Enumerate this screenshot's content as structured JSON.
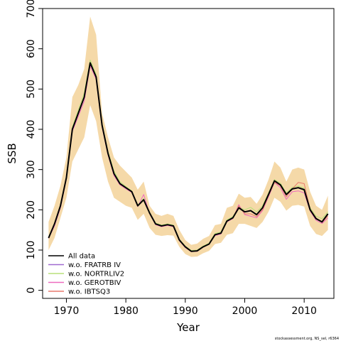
{
  "chart_data": {
    "type": "line",
    "xlabel": "Year",
    "ylabel": "SSB",
    "xlim": [
      1966,
      2015
    ],
    "ylim": [
      -20,
      700
    ],
    "xticks": [
      1970,
      1980,
      1990,
      2000,
      2010
    ],
    "yticks": [
      0,
      100,
      200,
      300,
      400,
      500,
      600,
      700
    ],
    "x": [
      1967,
      1968,
      1969,
      1970,
      1971,
      1972,
      1973,
      1974,
      1975,
      1976,
      1977,
      1978,
      1979,
      1980,
      1981,
      1982,
      1983,
      1984,
      1985,
      1986,
      1987,
      1988,
      1989,
      1990,
      1991,
      1992,
      1993,
      1994,
      1995,
      1996,
      1997,
      1998,
      1999,
      2000,
      2001,
      2002,
      2003,
      2004,
      2005,
      2006,
      2007,
      2008,
      2009,
      2010,
      2011,
      2012,
      2013,
      2014
    ],
    "band": {
      "lower": [
        100,
        130,
        180,
        230,
        320,
        350,
        380,
        460,
        420,
        330,
        270,
        230,
        220,
        210,
        205,
        175,
        190,
        155,
        138,
        135,
        137,
        136,
        108,
        90,
        83,
        84,
        92,
        98,
        115,
        118,
        138,
        142,
        165,
        165,
        160,
        155,
        170,
        195,
        230,
        220,
        198,
        210,
        212,
        208,
        160,
        140,
        135,
        150
      ],
      "upper": [
        170,
        210,
        260,
        330,
        480,
        510,
        550,
        680,
        635,
        440,
        380,
        330,
        310,
        295,
        280,
        250,
        270,
        210,
        190,
        185,
        190,
        185,
        150,
        125,
        113,
        116,
        128,
        135,
        162,
        165,
        205,
        210,
        240,
        230,
        232,
        215,
        238,
        275,
        320,
        305,
        270,
        300,
        305,
        300,
        245,
        210,
        200,
        235
      ]
    },
    "series": [
      {
        "name": "All data",
        "color": "#000000",
        "values": [
          130,
          165,
          210,
          280,
          400,
          440,
          480,
          565,
          530,
          410,
          340,
          290,
          265,
          255,
          245,
          210,
          225,
          192,
          165,
          160,
          163,
          160,
          125,
          108,
          97,
          98,
          108,
          115,
          138,
          142,
          172,
          180,
          205,
          195,
          198,
          188,
          205,
          238,
          272,
          262,
          238,
          252,
          255,
          250,
          200,
          178,
          170,
          190
        ]
      },
      {
        "name": "w.o. FRATRB IV",
        "color": "#a06ad0",
        "values": [
          131,
          166,
          211,
          281,
          401,
          441,
          481,
          566,
          531,
          411,
          341,
          291,
          266,
          256,
          246,
          211,
          226,
          193,
          166,
          161,
          164,
          161,
          126,
          109,
          98,
          99,
          109,
          116,
          139,
          143,
          173,
          181,
          204,
          194,
          197,
          187,
          204,
          237,
          271,
          261,
          237,
          251,
          254,
          249,
          199,
          177,
          169,
          189
        ]
      },
      {
        "name": "w.o. NORTRLIV2",
        "color": "#b9e07a",
        "values": [
          132,
          167,
          213,
          283,
          405,
          448,
          490,
          572,
          536,
          415,
          345,
          296,
          270,
          258,
          247,
          212,
          228,
          194,
          167,
          162,
          165,
          162,
          127,
          110,
          99,
          100,
          110,
          117,
          141,
          145,
          175,
          183,
          207,
          200,
          206,
          195,
          210,
          242,
          275,
          266,
          242,
          256,
          259,
          254,
          205,
          184,
          178,
          195
        ]
      },
      {
        "name": "w.o. GEROTBIV",
        "color": "#ee6bbf",
        "values": [
          129,
          160,
          205,
          276,
          395,
          432,
          470,
          558,
          524,
          405,
          336,
          285,
          262,
          252,
          243,
          208,
          238,
          190,
          163,
          158,
          161,
          158,
          123,
          106,
          96,
          97,
          107,
          114,
          136,
          140,
          170,
          178,
          213,
          188,
          184,
          180,
          198,
          232,
          268,
          255,
          226,
          245,
          247,
          242,
          197,
          174,
          166,
          180
        ]
      },
      {
        "name": "w.o. IBTSQ3",
        "color": "#e87a6e",
        "values": [
          130,
          165,
          210,
          280,
          400,
          440,
          480,
          565,
          530,
          410,
          340,
          290,
          265,
          255,
          245,
          210,
          225,
          192,
          165,
          160,
          163,
          160,
          125,
          108,
          97,
          98,
          108,
          115,
          138,
          142,
          172,
          180,
          210,
          190,
          190,
          183,
          200,
          235,
          268,
          260,
          232,
          252,
          268,
          265,
          202,
          180,
          168,
          185
        ]
      }
    ],
    "legend_position": "bottom-left",
    "grid": false,
    "footnote": "stockassessment.org, NS_sel, r6364"
  }
}
